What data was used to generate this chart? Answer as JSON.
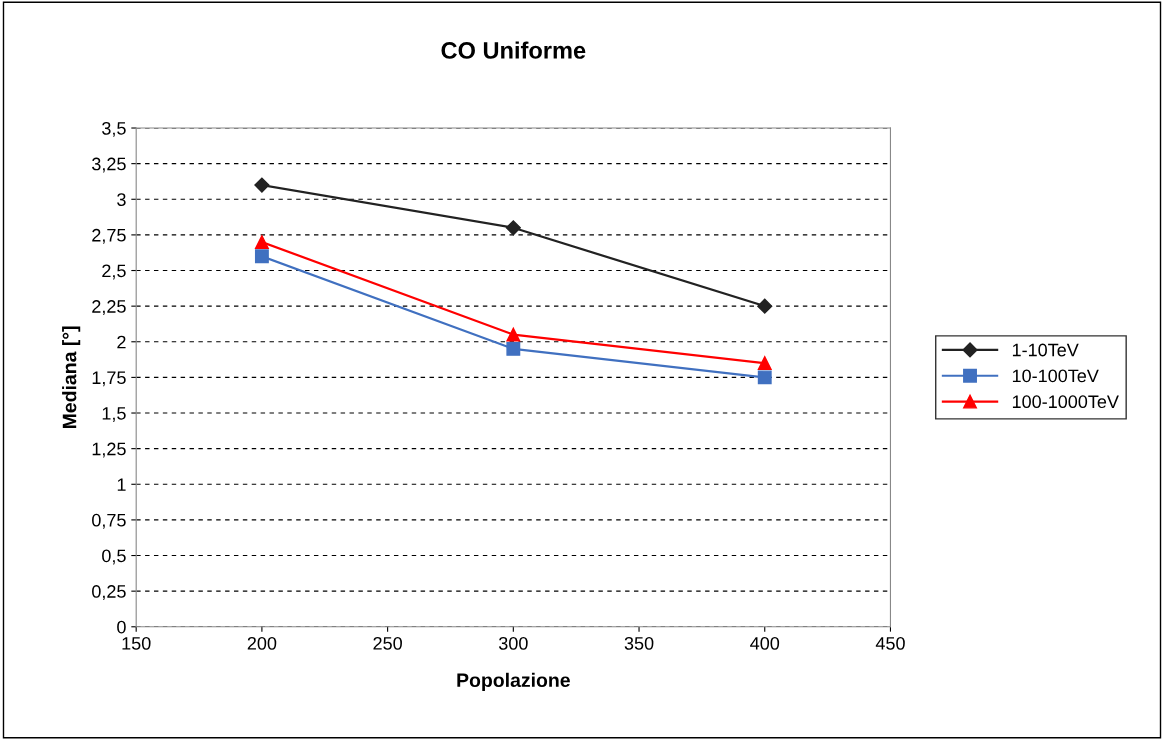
{
  "chart_data": {
    "type": "line",
    "title": "CO Uniforme",
    "xlabel": "Popolazione",
    "ylabel": "Mediana [°]",
    "xlim": [
      150,
      450
    ],
    "xticks": [
      150,
      200,
      250,
      300,
      350,
      400,
      450
    ],
    "ylim": [
      0,
      3.5
    ],
    "yticks": [
      0,
      {
        "value": 0.25,
        "label": "0,25"
      },
      {
        "value": 0.5,
        "label": "0,5"
      },
      {
        "value": 0.75,
        "label": "0,75"
      },
      1,
      {
        "value": 1.25,
        "label": "1,25"
      },
      {
        "value": 1.5,
        "label": "1,5"
      },
      {
        "value": 1.75,
        "label": "1,75"
      },
      2,
      {
        "value": 2.25,
        "label": "2,25"
      },
      {
        "value": 2.5,
        "label": "2,5"
      },
      {
        "value": 2.75,
        "label": "2,75"
      },
      3,
      {
        "value": 3.25,
        "label": "3,25"
      },
      {
        "value": 3.5,
        "label": "3,5"
      }
    ],
    "grid": "y",
    "legend": "right",
    "line_style": "solid",
    "series": [
      {
        "name": "1-10TeV",
        "color": "#222222",
        "marker": "diamond",
        "x": [
          200,
          300,
          400
        ],
        "values": [
          3.1,
          2.8,
          2.25
        ]
      },
      {
        "name": "10-100TeV",
        "color": "#4070c0",
        "marker": "square",
        "x": [
          200,
          300,
          400
        ],
        "values": [
          2.6,
          1.95,
          1.75
        ]
      },
      {
        "name": "100-1000TeV",
        "color": "#ff0000",
        "marker": "triangle",
        "x": [
          200,
          300,
          400
        ],
        "values": [
          2.7,
          2.05,
          1.85
        ]
      }
    ]
  }
}
